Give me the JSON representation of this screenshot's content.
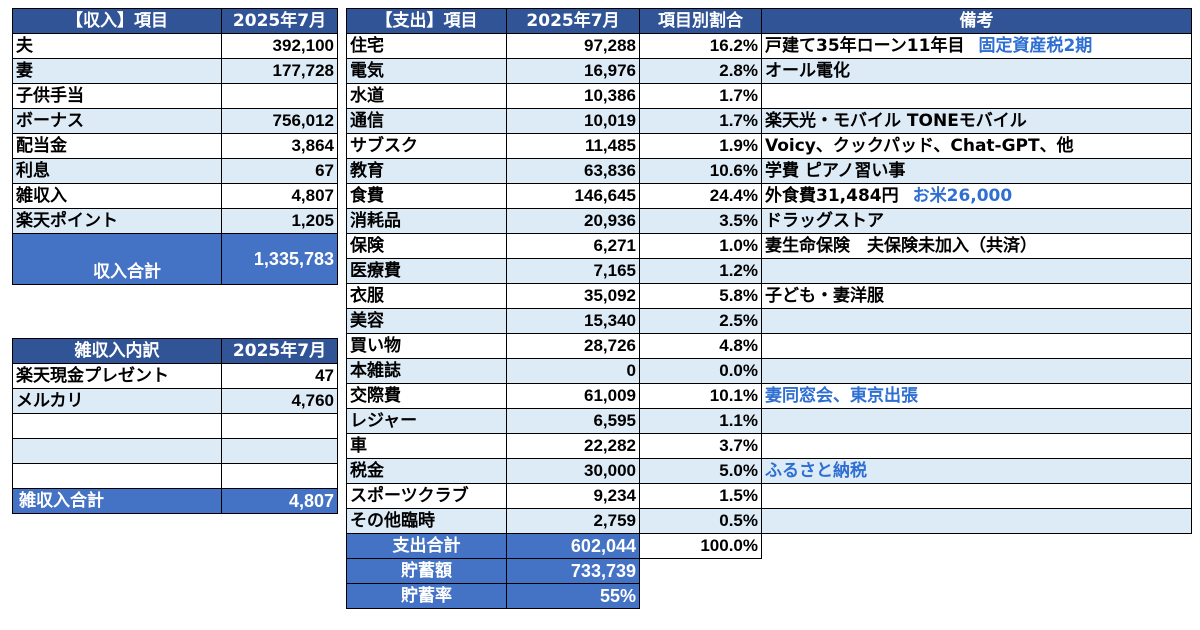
{
  "income": {
    "header": {
      "item": "【収入】項目",
      "month": "2025年7月"
    },
    "rows": [
      {
        "item": "夫",
        "value": "392,100"
      },
      {
        "item": "妻",
        "value": "177,728"
      },
      {
        "item": "子供手当",
        "value": ""
      },
      {
        "item": "ボーナス",
        "value": "756,012"
      },
      {
        "item": "配当金",
        "value": "3,864"
      },
      {
        "item": "利息",
        "value": "67"
      },
      {
        "item": "雑収入",
        "value": "4,807"
      },
      {
        "item": "楽天ポイント",
        "value": "1,205"
      }
    ],
    "total": {
      "label": "収入合計",
      "value": "1,335,783"
    }
  },
  "misc_income": {
    "header": {
      "item": "雑収入内訳",
      "month": "2025年7月"
    },
    "rows": [
      {
        "item": "楽天現金プレゼント",
        "value": "47"
      },
      {
        "item": "メルカリ",
        "value": "4,760"
      },
      {
        "item": "",
        "value": ""
      },
      {
        "item": "",
        "value": ""
      },
      {
        "item": "",
        "value": ""
      }
    ],
    "total": {
      "label": "雑収入合計",
      "value": "4,807"
    }
  },
  "expenses": {
    "header": {
      "item": "【支出】項目",
      "month": "2025年7月",
      "ratio": "項目別割合",
      "note": "備考"
    },
    "rows": [
      {
        "item": "住宅",
        "value": "97,288",
        "ratio": "16.2%",
        "note": "戸建て35年ローン11年目",
        "note_blue": "固定資産税2期"
      },
      {
        "item": "電気",
        "value": "16,976",
        "ratio": "2.8%",
        "note": "オール電化",
        "note_blue": ""
      },
      {
        "item": "水道",
        "value": "10,386",
        "ratio": "1.7%",
        "note": "",
        "note_blue": ""
      },
      {
        "item": "通信",
        "value": "10,019",
        "ratio": "1.7%",
        "note": "楽天光・モバイル TONEモバイル",
        "note_blue": ""
      },
      {
        "item": "サブスク",
        "value": "11,485",
        "ratio": "1.9%",
        "note": "Voicy、クックパッド、Chat-GPT、他",
        "note_blue": ""
      },
      {
        "item": "教育",
        "value": "63,836",
        "ratio": "10.6%",
        "note": "学費 ピアノ習い事",
        "note_blue": ""
      },
      {
        "item": "食費",
        "value": "146,645",
        "ratio": "24.4%",
        "note": "外食費31,484円",
        "note_blue": "お米26,000"
      },
      {
        "item": "消耗品",
        "value": "20,936",
        "ratio": "3.5%",
        "note": "ドラッグストア",
        "note_blue": ""
      },
      {
        "item": "保険",
        "value": "6,271",
        "ratio": "1.0%",
        "note": "妻生命保険　夫保険未加入（共済）",
        "note_blue": ""
      },
      {
        "item": "医療費",
        "value": "7,165",
        "ratio": "1.2%",
        "note": "",
        "note_blue": ""
      },
      {
        "item": "衣服",
        "value": "35,092",
        "ratio": "5.8%",
        "note": "子ども・妻洋服",
        "note_blue": ""
      },
      {
        "item": "美容",
        "value": "15,340",
        "ratio": "2.5%",
        "note": "",
        "note_blue": ""
      },
      {
        "item": "買い物",
        "value": "28,726",
        "ratio": "4.8%",
        "note": "",
        "note_blue": ""
      },
      {
        "item": "本雑誌",
        "value": "0",
        "ratio": "0.0%",
        "note": "",
        "note_blue": ""
      },
      {
        "item": "交際費",
        "value": "61,009",
        "ratio": "10.1%",
        "note": "",
        "note_blue": "妻同窓会、東京出張"
      },
      {
        "item": "レジャー",
        "value": "6,595",
        "ratio": "1.1%",
        "note": "",
        "note_blue": ""
      },
      {
        "item": "車",
        "value": "22,282",
        "ratio": "3.7%",
        "note": "",
        "note_blue": ""
      },
      {
        "item": "税金",
        "value": "30,000",
        "ratio": "5.0%",
        "note": "",
        "note_blue": "ふるさと納税"
      },
      {
        "item": "スポーツクラブ",
        "value": "9,234",
        "ratio": "1.5%",
        "note": "",
        "note_blue": ""
      },
      {
        "item": "その他臨時",
        "value": "2,759",
        "ratio": "0.5%",
        "note": "",
        "note_blue": ""
      }
    ],
    "total": {
      "label": "支出合計",
      "value": "602,044",
      "ratio": "100.0%"
    },
    "savings": {
      "label": "貯蓄額",
      "value": "733,739"
    },
    "savings_rate": {
      "label": "貯蓄率",
      "value": "55%"
    }
  }
}
